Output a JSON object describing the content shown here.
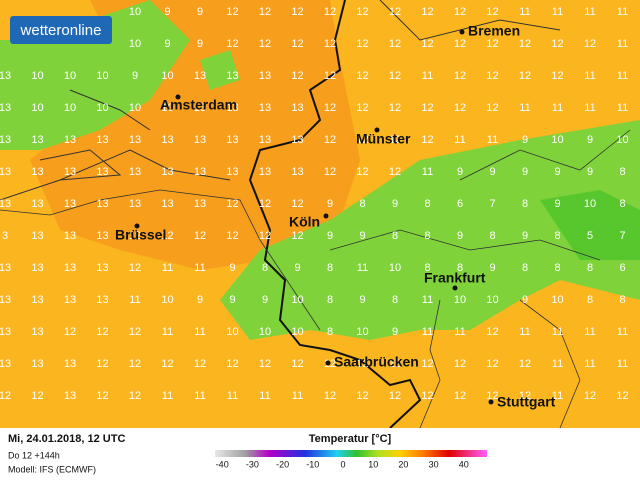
{
  "logo": "wetteronline",
  "cities": [
    "Bremen",
    "Amsterdam",
    "Münster",
    "Köln",
    "Brüssel",
    "Frankfurt",
    "Saarbrücken",
    "Stuttgart"
  ],
  "grid": {
    "rows": [
      [
        null,
        null,
        null,
        null,
        10,
        9,
        9,
        12,
        12,
        12,
        12,
        12,
        12,
        12,
        12,
        12,
        11,
        11,
        11,
        11
      ],
      [
        null,
        null,
        null,
        null,
        10,
        9,
        9,
        12,
        12,
        12,
        12,
        12,
        12,
        12,
        12,
        12,
        12,
        12,
        12,
        11
      ],
      [
        13,
        10,
        10,
        10,
        9,
        10,
        13,
        13,
        13,
        12,
        12,
        12,
        12,
        11,
        12,
        12,
        12,
        12,
        11,
        11
      ],
      [
        13,
        10,
        10,
        10,
        10,
        10,
        13,
        13,
        13,
        13,
        12,
        12,
        12,
        12,
        12,
        12,
        11,
        11,
        11,
        11
      ],
      [
        13,
        13,
        13,
        13,
        13,
        13,
        13,
        13,
        13,
        13,
        12,
        12,
        12,
        12,
        11,
        11,
        9,
        10,
        9,
        10
      ],
      [
        13,
        13,
        13,
        13,
        13,
        13,
        13,
        13,
        13,
        13,
        12,
        12,
        12,
        11,
        9,
        9,
        9,
        9,
        9,
        8
      ],
      [
        13,
        13,
        13,
        13,
        13,
        13,
        13,
        12,
        12,
        12,
        9,
        8,
        9,
        8,
        6,
        7,
        8,
        9,
        10,
        8
      ],
      [
        3,
        13,
        13,
        13,
        12,
        12,
        12,
        12,
        12,
        12,
        9,
        9,
        8,
        8,
        9,
        8,
        9,
        8,
        5,
        7
      ],
      [
        13,
        13,
        13,
        13,
        12,
        11,
        11,
        9,
        8,
        9,
        8,
        11,
        10,
        8,
        8,
        9,
        8,
        8,
        8,
        6
      ],
      [
        13,
        13,
        13,
        13,
        11,
        10,
        9,
        9,
        9,
        10,
        8,
        9,
        8,
        11,
        10,
        10,
        9,
        10,
        8,
        8
      ],
      [
        13,
        13,
        12,
        12,
        12,
        11,
        11,
        10,
        10,
        10,
        8,
        10,
        9,
        11,
        11,
        12,
        11,
        11,
        11,
        11
      ],
      [
        13,
        13,
        13,
        12,
        12,
        12,
        12,
        12,
        12,
        12,
        12,
        12,
        12,
        12,
        12,
        12,
        12,
        11,
        11,
        11
      ],
      [
        12,
        12,
        13,
        12,
        12,
        11,
        11,
        11,
        11,
        11,
        12,
        12,
        12,
        12,
        12,
        12,
        12,
        11,
        12,
        12
      ]
    ]
  },
  "footer": {
    "date": "Mi, 24.01.2018, 12 UTC",
    "run": "Do 12 +144h",
    "model": "Modell: IFS (ECMWF)"
  },
  "legend": {
    "title": "Temperatur [°C]",
    "ticks": [
      -40,
      -30,
      -20,
      -10,
      0,
      10,
      20,
      30,
      40
    ]
  }
}
